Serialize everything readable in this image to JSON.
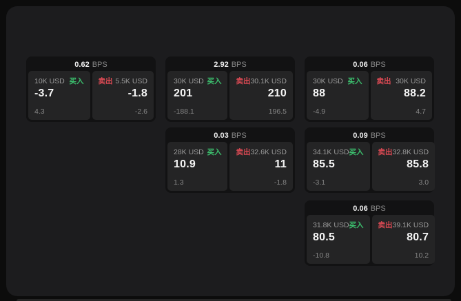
{
  "colors": {
    "buy-green": "#3cc06e",
    "sell-red": "#dc4a54"
  },
  "cards": [
    {
      "bps": "0.62",
      "bps_label": "BPS",
      "buy": {
        "size": "10K USD",
        "tag": "买入",
        "value": "-3.7",
        "change": "4.3"
      },
      "sell": {
        "size": "5.5K USD",
        "tag": "卖出",
        "value": "-1.8",
        "change": "-2.6"
      }
    },
    {
      "bps": "2.92",
      "bps_label": "BPS",
      "buy": {
        "size": "30K USD",
        "tag": "买入",
        "value": "201",
        "change": "-188.1"
      },
      "sell": {
        "size": "30.1K USD",
        "tag": "卖出",
        "value": "210",
        "change": "196.5"
      }
    },
    {
      "bps": "0.06",
      "bps_label": "BPS",
      "buy": {
        "size": "30K USD",
        "tag": "买入",
        "value": "88",
        "change": "-4.9"
      },
      "sell": {
        "size": "30K USD",
        "tag": "卖出",
        "value": "88.2",
        "change": "4.7"
      }
    },
    {
      "bps": "0.03",
      "bps_label": "BPS",
      "buy": {
        "size": "28K USD",
        "tag": "买入",
        "value": "10.9",
        "change": "1.3"
      },
      "sell": {
        "size": "32.6K USD",
        "tag": "卖出",
        "value": "11",
        "change": "-1.8"
      }
    },
    {
      "bps": "0.09",
      "bps_label": "BPS",
      "buy": {
        "size": "34.1K USD",
        "tag": "买入",
        "value": "85.5",
        "change": "-3.1"
      },
      "sell": {
        "size": "32.8K USD",
        "tag": "卖出",
        "value": "85.8",
        "change": "3.0"
      }
    },
    {
      "bps": "0.06",
      "bps_label": "BPS",
      "buy": {
        "size": "31.8K USD",
        "tag": "买入",
        "value": "80.5",
        "change": "-10.8"
      },
      "sell": {
        "size": "39.1K USD",
        "tag": "卖出",
        "value": "80.7",
        "change": "10.2"
      }
    }
  ]
}
